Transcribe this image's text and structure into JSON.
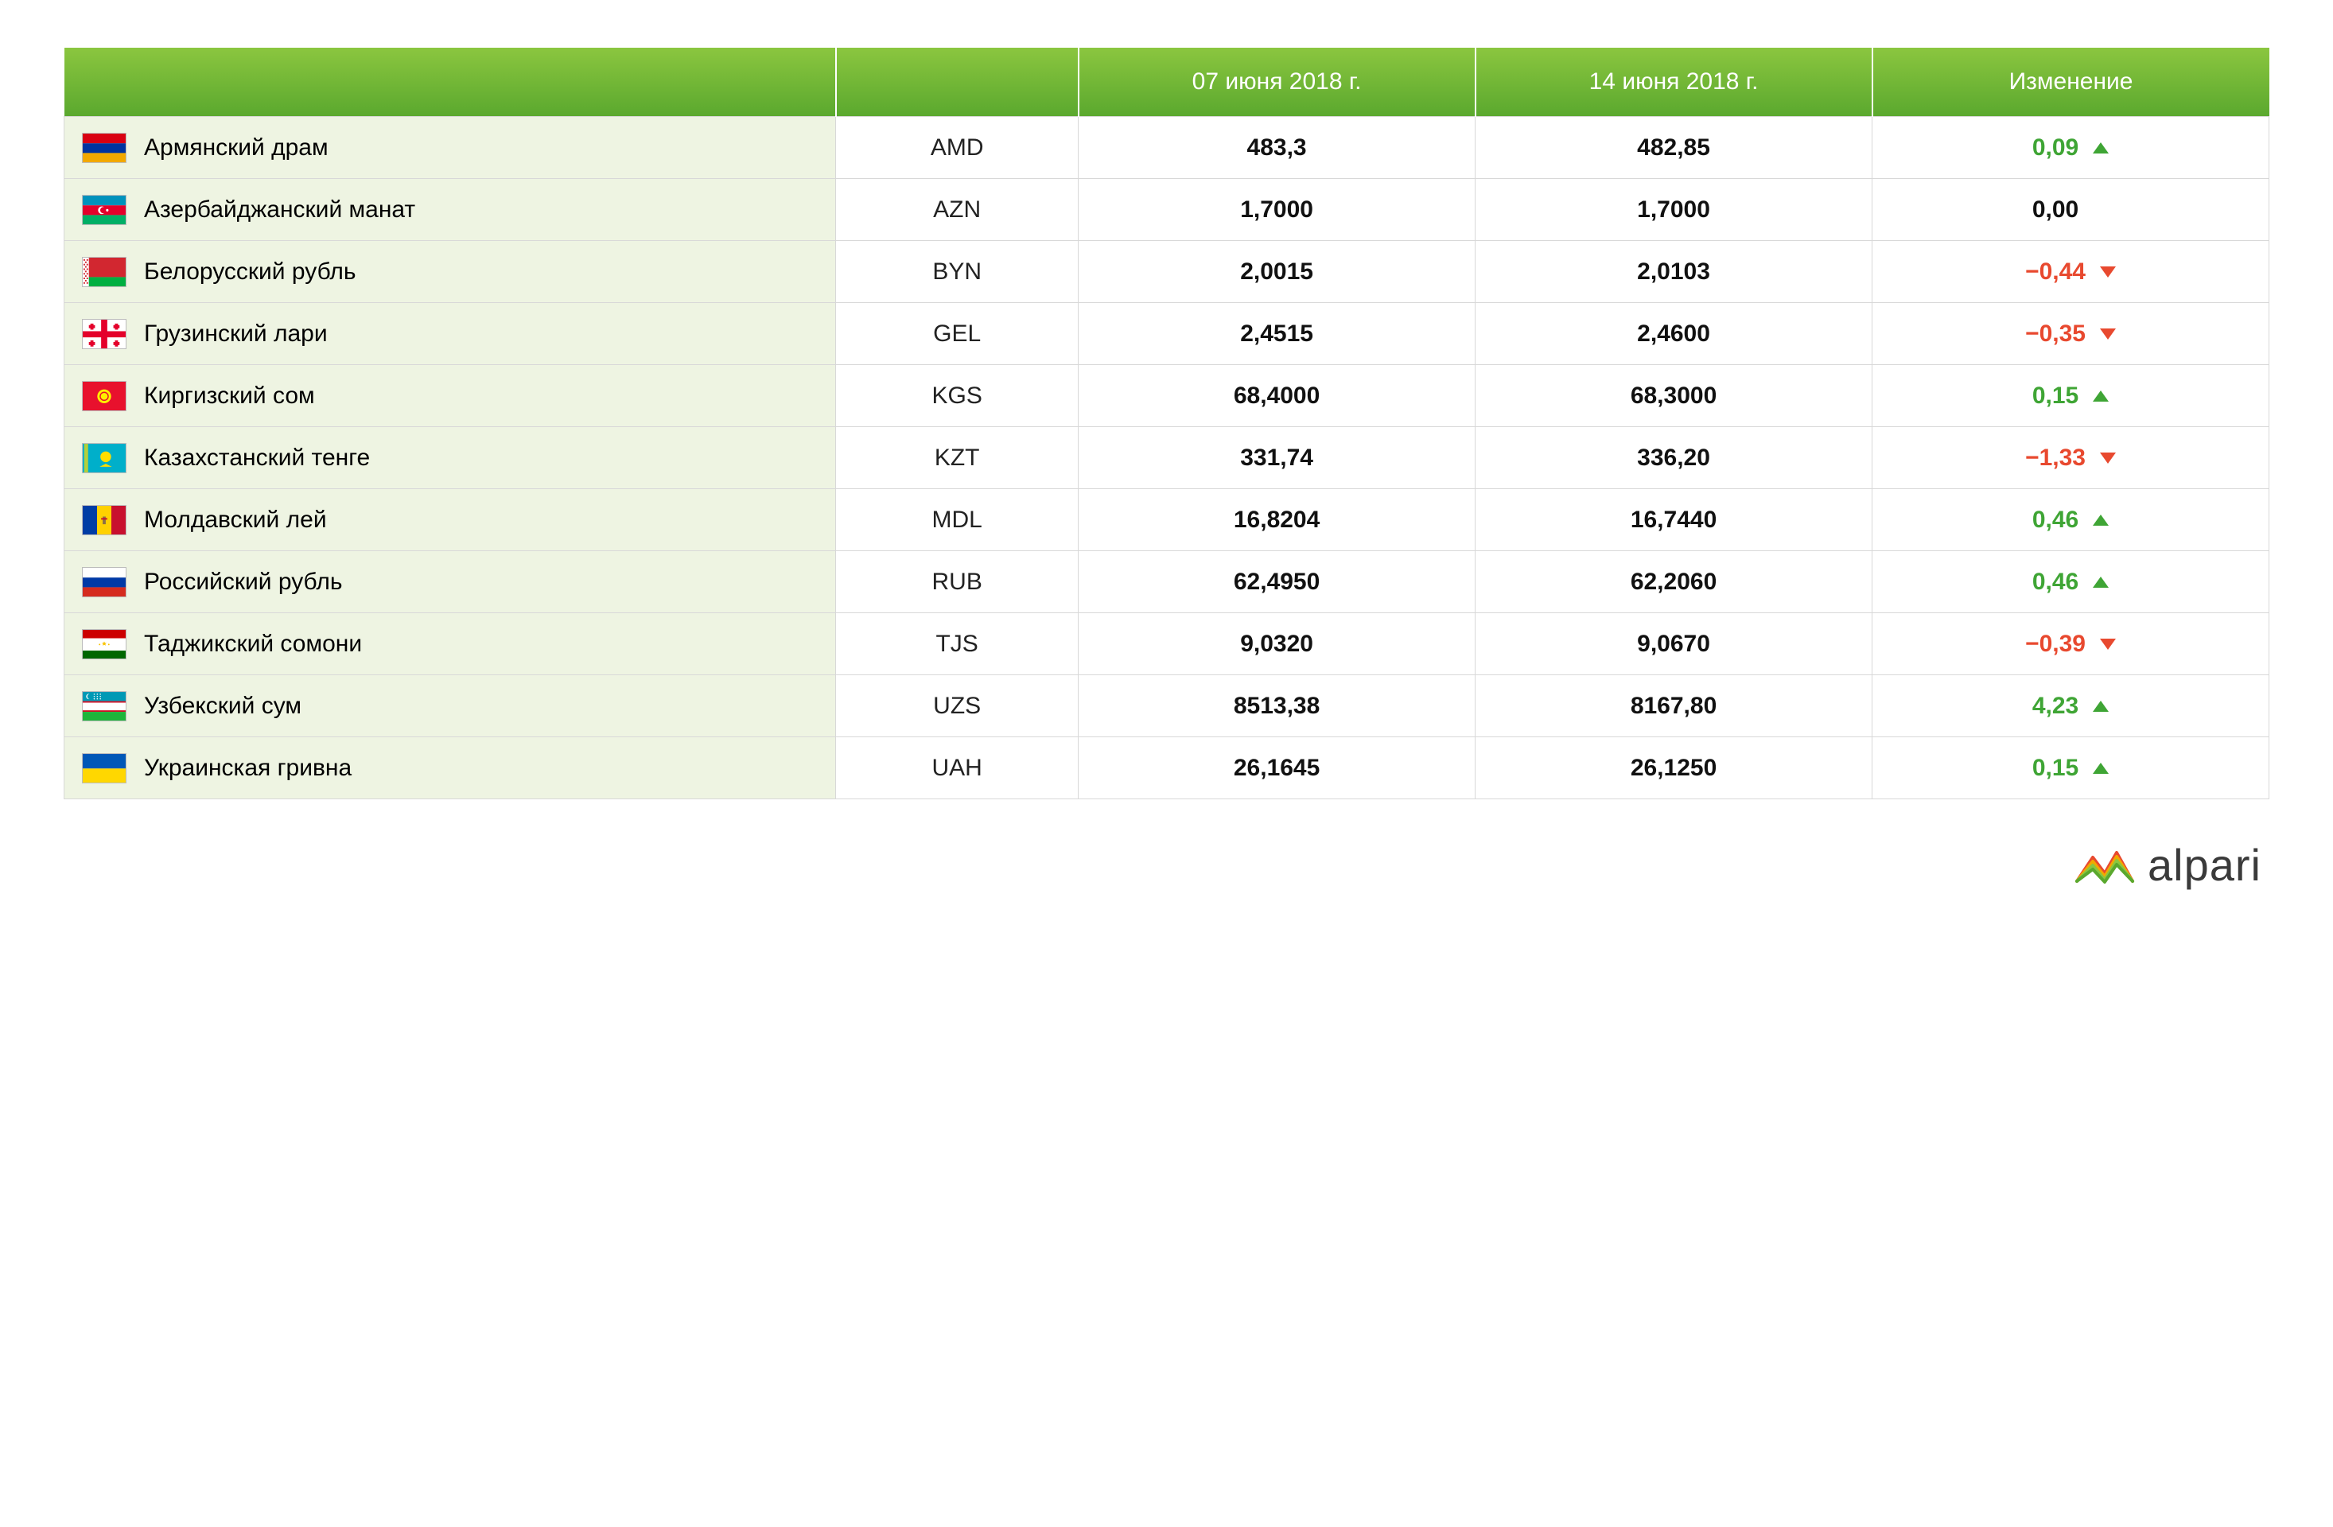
{
  "header": {
    "col_name": "",
    "col_code": "",
    "col_date1": "07 июня 2018 г.",
    "col_date2": "14 июня 2018 г.",
    "col_change": "Изменение"
  },
  "colors": {
    "header_gradient_top": "#8bc63f",
    "header_gradient_bottom": "#5aa82e",
    "name_bg": "#eef4e2",
    "border": "#d8d8d8",
    "up": "#3fa535",
    "down": "#e8492f",
    "flat": "#111111"
  },
  "rows": [
    {
      "name": "Армянский драм",
      "code": "AMD",
      "v1": "483,3",
      "v2": "482,85",
      "change": "0,09",
      "dir": "up"
    },
    {
      "name": "Азербайджанский манат",
      "code": "AZN",
      "v1": "1,7000",
      "v2": "1,7000",
      "change": "0,00",
      "dir": "flat"
    },
    {
      "name": "Белорусский рубль",
      "code": "BYN",
      "v1": "2,0015",
      "v2": "2,0103",
      "change": "−0,44",
      "dir": "down"
    },
    {
      "name": "Грузинский лари",
      "code": "GEL",
      "v1": "2,4515",
      "v2": "2,4600",
      "change": "−0,35",
      "dir": "down"
    },
    {
      "name": "Киргизский сом",
      "code": "KGS",
      "v1": "68,4000",
      "v2": "68,3000",
      "change": "0,15",
      "dir": "up"
    },
    {
      "name": "Казахстанский тенге",
      "code": "KZT",
      "v1": "331,74",
      "v2": "336,20",
      "change": "−1,33",
      "dir": "down"
    },
    {
      "name": "Молдавский лей",
      "code": "MDL",
      "v1": "16,8204",
      "v2": "16,7440",
      "change": "0,46",
      "dir": "up"
    },
    {
      "name": "Российский рубль",
      "code": "RUB",
      "v1": "62,4950",
      "v2": "62,2060",
      "change": "0,46",
      "dir": "up"
    },
    {
      "name": "Таджикский сомони",
      "code": "TJS",
      "v1": "9,0320",
      "v2": "9,0670",
      "change": "−0,39",
      "dir": "down"
    },
    {
      "name": "Узбекский сум",
      "code": "UZS",
      "v1": "8513,38",
      "v2": "8167,80",
      "change": "4,23",
      "dir": "up"
    },
    {
      "name": "Украинская гривна",
      "code": "UAH",
      "v1": "26,1645",
      "v2": "26,1250",
      "change": "0,15",
      "dir": "up"
    }
  ],
  "flags": {
    "AMD": "<svg viewBox='0 0 56 38'><rect width='56' height='12.67' fill='#d90012'/><rect y='12.67' width='56' height='12.67' fill='#0033a0'/><rect y='25.33' width='56' height='12.67' fill='#f2a800'/></svg>",
    "AZN": "<svg viewBox='0 0 56 38'><rect width='56' height='12.67' fill='#0092bc'/><rect y='12.67' width='56' height='12.67' fill='#e4002b'/><rect y='25.33' width='56' height='12.67' fill='#00af66'/><circle cx='25' cy='19' r='5' fill='#fff'/><circle cx='27' cy='19' r='4.2' fill='#e4002b'/><circle cx='32' cy='19' r='1.6' fill='#fff'/></svg>",
    "BYN": "<svg viewBox='0 0 56 38'><rect width='56' height='25.33' fill='#d22730'/><rect y='25.33' width='56' height='12.67' fill='#00af41'/><rect width='8' height='38' fill='#fff'/><g fill='#d22730'><rect x='1' y='2' width='2' height='2'/><rect x='5' y='2' width='2' height='2'/><rect x='3' y='5' width='2' height='2'/><rect x='1' y='8' width='2' height='2'/><rect x='5' y='8' width='2' height='2'/><rect x='3' y='11' width='2' height='2'/><rect x='1' y='14' width='2' height='2'/><rect x='5' y='14' width='2' height='2'/><rect x='3' y='17' width='2' height='2'/><rect x='1' y='20' width='2' height='2'/><rect x='5' y='20' width='2' height='2'/><rect x='3' y='23' width='2' height='2'/><rect x='1' y='26' width='2' height='2'/><rect x='5' y='26' width='2' height='2'/><rect x='3' y='29' width='2' height='2'/><rect x='1' y='32' width='2' height='2'/><rect x='5' y='32' width='2' height='2'/></g></svg>",
    "GEL": "<svg viewBox='0 0 56 38'><rect width='56' height='38' fill='#fff'/><rect x='24' width='8' height='38' fill='#e4002b'/><rect y='15' width='56' height='8' fill='#e4002b'/><g fill='#e4002b'><path d='M10 5h4v2h2v4h-2v2h-4v-2h-2v-4h2z'/><path d='M42 5h4v2h2v4h-2v2h-4v-2h-2v-4h2z'/><path d='M10 27h4v2h2v4h-2v2h-4v-2h-2v-4h2z'/><path d='M42 27h4v2h2v4h-2v2h-4v-2h-2v-4h2z'/></g></svg>",
    "KGS": "<svg viewBox='0 0 56 38'><rect width='56' height='38' fill='#e8112d'/><circle cx='28' cy='19' r='9' fill='#ffef00'/><circle cx='28' cy='19' r='6' fill='#e8112d'/><circle cx='28' cy='19' r='4.5' fill='#ffef00'/></svg>",
    "KZT": "<svg viewBox='0 0 56 38'><rect width='56' height='38' fill='#00afca'/><circle cx='30' cy='17' r='7' fill='#ffde00'/><path d='M30 26 l-8 4 h16 z' fill='#ffde00'/><rect x='2' width='5' height='38' fill='#ffde00' opacity='0.7'/></svg>",
    "MDL": "<svg viewBox='0 0 56 38'><rect width='18.67' height='38' fill='#003da5'/><rect x='18.67' width='18.67' height='38' fill='#ffd100'/><rect x='37.33' width='18.67' height='38' fill='#c8102e'/><path d='M26 14 h4 v10 h-4 z' fill='#8b6f47'/><path d='M24 16 h8 v2 h-8 z' fill='#c8102e'/></svg>",
    "RUB": "<svg viewBox='0 0 56 38'><rect width='56' height='12.67' fill='#fff'/><rect y='12.67' width='56' height='12.67' fill='#0039a6'/><rect y='25.33' width='56' height='12.67' fill='#d52b1e'/></svg>",
    "TJS": "<svg viewBox='0 0 56 38'><rect width='56' height='11' fill='#cc0000'/><rect y='11' width='56' height='16' fill='#fff'/><rect y='27' width='56' height='11' fill='#006600'/><path d='M28 15 l1 2 h2 l-1.5 1.5 l0.5 2 l-2 -1 l-2 1 l0.5 -2 l-1.5 -1.5 h2 z' fill='#f8c300'/><circle cx='22' cy='19' r='1' fill='#f8c300'/><circle cx='34' cy='19' r='1' fill='#f8c300'/></svg>",
    "UZS": "<svg viewBox='0 0 56 38'><rect width='56' height='12' fill='#0099b5'/><rect y='12' width='56' height='2' fill='#ce1126'/><rect y='14' width='56' height='10' fill='#fff'/><rect y='24' width='56' height='2' fill='#ce1126'/><rect y='26' width='56' height='12' fill='#1eb53a'/><circle cx='8' cy='6' r='3.5' fill='#fff'/><circle cx='9.5' cy='6' r='3.5' fill='#0099b5'/><g fill='#fff'><circle cx='15' cy='3' r='0.8'/><circle cx='19' cy='3' r='0.8'/><circle cx='23' cy='3' r='0.8'/><circle cx='15' cy='6' r='0.8'/><circle cx='19' cy='6' r='0.8'/><circle cx='23' cy='6' r='0.8'/><circle cx='15' cy='9' r='0.8'/><circle cx='19' cy='9' r='0.8'/><circle cx='23' cy='9' r='0.8'/></g></svg>",
    "UAH": "<svg viewBox='0 0 56 38'><rect width='56' height='19' fill='#0057b7'/><rect y='19' width='56' height='19' fill='#ffd700'/></svg>"
  },
  "logo": {
    "text": "alpari",
    "colors": [
      "#e8492f",
      "#f2a800",
      "#8bc63f",
      "#5aa82e"
    ]
  }
}
